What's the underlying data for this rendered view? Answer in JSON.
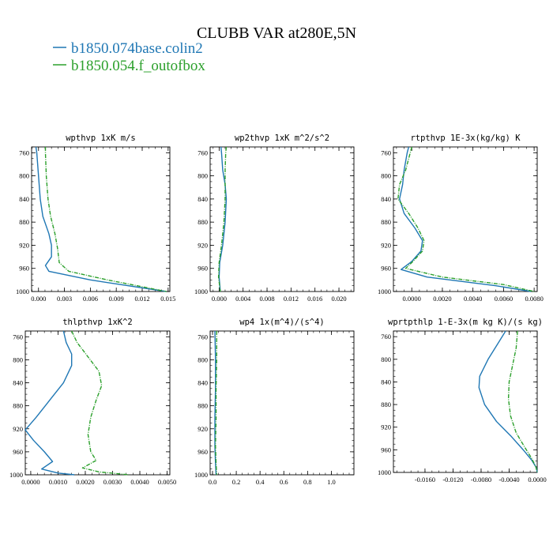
{
  "figure": {
    "title": "CLUBB VAR at280E,5N",
    "legend": [
      {
        "label": "b1850.074base.colin2",
        "color": "#1f77b4"
      },
      {
        "label": "b1850.054.f_outofbox",
        "color": "#2ca02c"
      }
    ]
  },
  "chart_data": [
    {
      "type": "line",
      "title": "wpthvp  1xK m/s",
      "xlim": [
        -0.0008,
        0.0152
      ],
      "ylim": [
        1000,
        750
      ],
      "xticks": [
        0.0,
        0.003,
        0.006,
        0.009,
        0.012,
        0.015
      ],
      "xtick_labels": [
        "0.000",
        "0.003",
        "0.006",
        "0.009",
        "0.012",
        "0.015"
      ],
      "yticks": [
        760,
        800,
        840,
        880,
        920,
        960,
        1000
      ],
      "ytick_labels": [
        "760",
        "800",
        "840",
        "880",
        "920",
        "960",
        "1000"
      ],
      "series": [
        {
          "values": [
            [
              -0.0003,
              750
            ],
            [
              -0.0002,
              760
            ],
            [
              0.0,
              800
            ],
            [
              0.0002,
              840
            ],
            [
              0.0005,
              870
            ],
            [
              0.0012,
              900
            ],
            [
              0.0015,
              920
            ],
            [
              0.0015,
              940
            ],
            [
              0.0008,
              955
            ],
            [
              0.0012,
              965
            ],
            [
              0.006,
              980
            ],
            [
              0.0148,
              1000
            ]
          ]
        },
        {
          "values": [
            [
              0.0008,
              750
            ],
            [
              0.0008,
              760
            ],
            [
              0.0009,
              800
            ],
            [
              0.0011,
              840
            ],
            [
              0.0014,
              870
            ],
            [
              0.0019,
              900
            ],
            [
              0.0022,
              925
            ],
            [
              0.0024,
              950
            ],
            [
              0.0035,
              965
            ],
            [
              0.008,
              980
            ],
            [
              0.0148,
              1000
            ]
          ]
        }
      ]
    },
    {
      "type": "line",
      "title": "wp2thvp  1xK m^2/s^2",
      "xlim": [
        -0.0015,
        0.0225
      ],
      "ylim": [
        1000,
        750
      ],
      "xticks": [
        0.0,
        0.004,
        0.008,
        0.012,
        0.016,
        0.02
      ],
      "xtick_labels": [
        "0.000",
        "0.004",
        "0.008",
        "0.012",
        "0.016",
        "0.020"
      ],
      "yticks": [
        760,
        800,
        840,
        880,
        920,
        960,
        1000
      ],
      "ytick_labels": [
        "760",
        "800",
        "840",
        "880",
        "920",
        "960",
        "1000"
      ],
      "series": [
        {
          "values": [
            [
              0.0003,
              750
            ],
            [
              0.0004,
              760
            ],
            [
              0.0006,
              790
            ],
            [
              0.001,
              815
            ],
            [
              0.0012,
              840
            ],
            [
              0.001,
              880
            ],
            [
              0.0006,
              920
            ],
            [
              0.0001,
              950
            ],
            [
              0.0,
              975
            ],
            [
              0.0002,
              1000
            ]
          ]
        },
        {
          "values": [
            [
              0.0012,
              750
            ],
            [
              0.0011,
              760
            ],
            [
              0.001,
              790
            ],
            [
              0.001,
              815
            ],
            [
              0.001,
              840
            ],
            [
              0.0008,
              880
            ],
            [
              0.0004,
              920
            ],
            [
              0.0,
              950
            ],
            [
              -0.0001,
              975
            ],
            [
              0.0002,
              1000
            ]
          ]
        }
      ]
    },
    {
      "type": "line",
      "title": "rtpthvp  1E-3x(kg/kg) K",
      "xlim": [
        -0.0012,
        0.0082
      ],
      "ylim": [
        1000,
        750
      ],
      "xticks": [
        0.0,
        0.002,
        0.004,
        0.006,
        0.008
      ],
      "xtick_labels": [
        "0.0000",
        "0.0020",
        "0.0040",
        "0.0060",
        "0.0080"
      ],
      "yticks": [
        760,
        800,
        840,
        880,
        920,
        960,
        1000
      ],
      "ytick_labels": [
        "760",
        "800",
        "840",
        "880",
        "920",
        "960",
        "1000"
      ],
      "series": [
        {
          "values": [
            [
              -0.0002,
              750
            ],
            [
              -0.0003,
              760
            ],
            [
              -0.0005,
              790
            ],
            [
              -0.0006,
              815
            ],
            [
              -0.0008,
              840
            ],
            [
              -0.0005,
              865
            ],
            [
              0.0002,
              890
            ],
            [
              0.0007,
              912
            ],
            [
              0.0006,
              930
            ],
            [
              0.0,
              948
            ],
            [
              -0.0007,
              962
            ],
            [
              0.001,
              975
            ],
            [
              0.0055,
              990
            ],
            [
              0.0078,
              1000
            ]
          ]
        },
        {
          "values": [
            [
              0.0,
              750
            ],
            [
              -0.0001,
              760
            ],
            [
              -0.0004,
              790
            ],
            [
              -0.0008,
              815
            ],
            [
              -0.0009,
              840
            ],
            [
              -0.0002,
              865
            ],
            [
              0.0004,
              890
            ],
            [
              0.0008,
              912
            ],
            [
              0.0007,
              930
            ],
            [
              0.0,
              950
            ],
            [
              -0.0004,
              960
            ],
            [
              0.002,
              975
            ],
            [
              0.006,
              988
            ],
            [
              0.008,
              1000
            ]
          ]
        }
      ]
    },
    {
      "type": "line",
      "title": "thlpthvp  1xK^2",
      "xlim": [
        -0.0002,
        0.0051
      ],
      "ylim": [
        1000,
        750
      ],
      "xticks": [
        0.0,
        0.001,
        0.002,
        0.003,
        0.004,
        0.005
      ],
      "xtick_labels": [
        "0.0000",
        "0.0010",
        "0.0020",
        "0.0030",
        "0.0040",
        "0.0050"
      ],
      "yticks": [
        760,
        800,
        840,
        880,
        920,
        960,
        1000
      ],
      "ytick_labels": [
        "760",
        "800",
        "840",
        "880",
        "920",
        "960",
        "1000"
      ],
      "series": [
        {
          "values": [
            [
              0.0012,
              750
            ],
            [
              0.0013,
              770
            ],
            [
              0.0015,
              790
            ],
            [
              0.0015,
              810
            ],
            [
              0.0012,
              840
            ],
            [
              0.0007,
              870
            ],
            [
              0.0002,
              900
            ],
            [
              -0.0002,
              922
            ],
            [
              0.0001,
              940
            ],
            [
              0.0005,
              960
            ],
            [
              0.0008,
              977
            ],
            [
              0.0004,
              990
            ],
            [
              0.001,
              997
            ],
            [
              0.0016,
              1000
            ]
          ]
        },
        {
          "values": [
            [
              0.0015,
              750
            ],
            [
              0.0017,
              770
            ],
            [
              0.0021,
              795
            ],
            [
              0.0025,
              820
            ],
            [
              0.0026,
              845
            ],
            [
              0.0024,
              870
            ],
            [
              0.0022,
              900
            ],
            [
              0.0021,
              930
            ],
            [
              0.0022,
              960
            ],
            [
              0.0024,
              975
            ],
            [
              0.0019,
              988
            ],
            [
              0.0025,
              995
            ],
            [
              0.0036,
              1000
            ]
          ]
        }
      ]
    },
    {
      "type": "line",
      "title": "wp4  1x(m^4)/(s^4)",
      "xlim": [
        -0.02,
        1.19
      ],
      "ylim": [
        1000,
        750
      ],
      "xticks": [
        0.0,
        0.2,
        0.4,
        0.6,
        0.8,
        1.0
      ],
      "xtick_labels": [
        "0.0",
        "0.2",
        "0.4",
        "0.6",
        "0.8",
        "1.0"
      ],
      "yticks": [
        760,
        800,
        840,
        880,
        920,
        960,
        1000
      ],
      "ytick_labels": [
        "760",
        "800",
        "840",
        "880",
        "920",
        "960",
        "1000"
      ],
      "series": [
        {
          "values": [
            [
              0.02,
              750
            ],
            [
              0.025,
              800
            ],
            [
              0.025,
              850
            ],
            [
              0.02,
              900
            ],
            [
              0.02,
              950
            ],
            [
              0.025,
              980
            ],
            [
              0.03,
              1000
            ]
          ]
        },
        {
          "values": [
            [
              0.035,
              750
            ],
            [
              0.035,
              800
            ],
            [
              0.03,
              850
            ],
            [
              0.03,
              900
            ],
            [
              0.025,
              950
            ],
            [
              0.03,
              980
            ],
            [
              0.035,
              1000
            ]
          ]
        }
      ]
    },
    {
      "type": "line",
      "title": "wprtpthlp  1-E-3x(m kg K)/(s kg)",
      "xlim": [
        -0.0205,
        0.0
      ],
      "ylim": [
        1000,
        750
      ],
      "xticks": [
        -0.016,
        -0.012,
        -0.008,
        -0.004,
        0.0
      ],
      "xtick_labels": [
        "-0.0160",
        "-0.0120",
        "-0.0080",
        "-0.0040",
        "0.0000"
      ],
      "yticks": [
        760,
        800,
        840,
        880,
        920,
        960,
        1000
      ],
      "ytick_labels": [
        "760",
        "800",
        "840",
        "880",
        "920",
        "960",
        "1000"
      ],
      "series": [
        {
          "values": [
            [
              -0.0045,
              750
            ],
            [
              -0.0055,
              770
            ],
            [
              -0.007,
              800
            ],
            [
              -0.0082,
              830
            ],
            [
              -0.0083,
              850
            ],
            [
              -0.0075,
              880
            ],
            [
              -0.0058,
              910
            ],
            [
              -0.0038,
              935
            ],
            [
              -0.002,
              960
            ],
            [
              -0.0008,
              978
            ],
            [
              -0.0001,
              992
            ],
            [
              0.0,
              1000
            ]
          ]
        },
        {
          "values": [
            [
              -0.0028,
              750
            ],
            [
              -0.003,
              780
            ],
            [
              -0.0035,
              810
            ],
            [
              -0.004,
              840
            ],
            [
              -0.0041,
              870
            ],
            [
              -0.0038,
              900
            ],
            [
              -0.003,
              930
            ],
            [
              -0.0018,
              955
            ],
            [
              -0.0008,
              975
            ],
            [
              -0.0002,
              990
            ],
            [
              0.0,
              1000
            ]
          ]
        }
      ]
    }
  ]
}
